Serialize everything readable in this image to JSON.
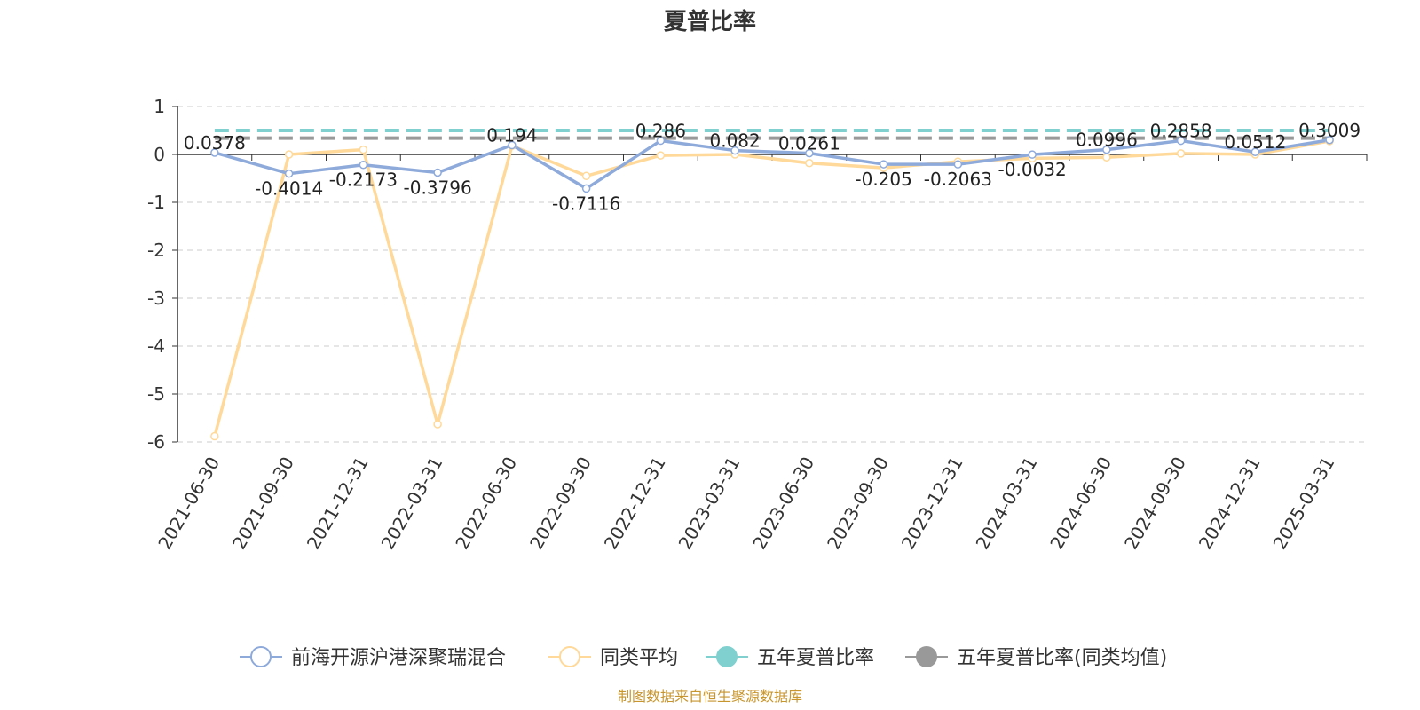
{
  "chart_data": {
    "type": "line",
    "title": "夏普比率",
    "xlabel": "",
    "ylabel": "",
    "ylim": [
      -6,
      1
    ],
    "yticks": [
      1,
      0,
      -1,
      -2,
      -3,
      -4,
      -5,
      -6
    ],
    "grid": true,
    "legend_position": "bottom",
    "categories": [
      "2021-06-30",
      "2021-09-30",
      "2021-12-31",
      "2022-03-31",
      "2022-06-30",
      "2022-09-30",
      "2022-12-31",
      "2023-03-31",
      "2023-06-30",
      "2023-09-30",
      "2023-12-31",
      "2024-03-31",
      "2024-06-30",
      "2024-09-30",
      "2024-12-31",
      "2025-03-31"
    ],
    "series": [
      {
        "name": "前海开源沪港深聚瑞混合",
        "color": "#8eaadb",
        "values": [
          0.0378,
          -0.4014,
          -0.2173,
          -0.3796,
          0.194,
          -0.7116,
          0.286,
          0.082,
          0.0261,
          -0.205,
          -0.2063,
          -0.0032,
          0.0996,
          0.2858,
          0.0512,
          0.3009
        ],
        "labels": [
          "0.0378",
          "-0.4014",
          "-0.2173",
          "-0.3796",
          "0.194",
          "-0.7116",
          "0.286",
          "0.082",
          "0.0261",
          "-0.205",
          "-0.2063",
          "-0.0032",
          "0.0996",
          "0.2858",
          "0.0512",
          "0.3009"
        ]
      },
      {
        "name": "同类平均",
        "color": "#ffd99a",
        "values": [
          -5.88,
          0.0,
          0.1,
          -5.63,
          0.18,
          -0.45,
          -0.02,
          0.0,
          -0.18,
          -0.28,
          -0.15,
          -0.08,
          -0.06,
          0.02,
          0.0,
          0.28
        ]
      },
      {
        "name": "五年夏普比率",
        "color": "#80d0d0",
        "constant": 0.5
      },
      {
        "name": "五年夏普比率(同类均值)",
        "color": "#999999",
        "constant": 0.34
      }
    ]
  },
  "source_note": "制图数据来自恒生聚源数据库"
}
